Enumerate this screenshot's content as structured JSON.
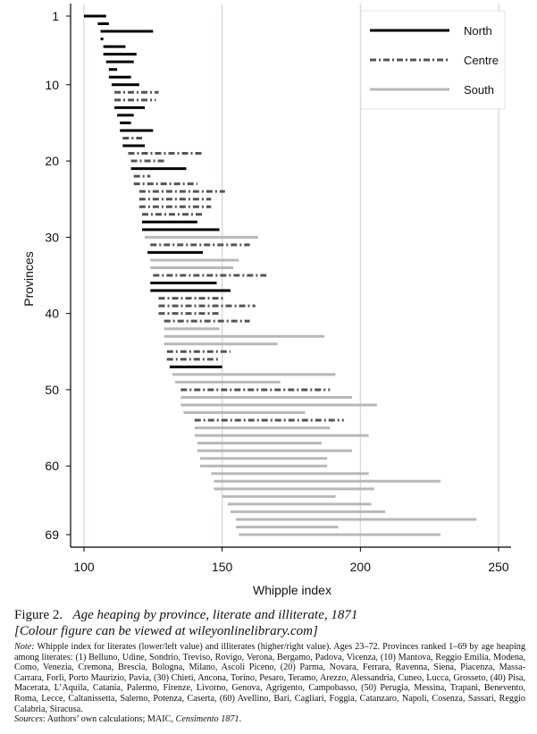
{
  "chart_data": {
    "type": "range-bar",
    "xlabel": "Whipple index",
    "ylabel": "Provinces",
    "xlim": [
      100,
      255
    ],
    "ylim": [
      0,
      70
    ],
    "x_ticks": [
      "100",
      "150",
      "200",
      "250"
    ],
    "y_ticks": [
      "1",
      "10",
      "20",
      "30",
      "40",
      "50",
      "60",
      "69"
    ],
    "grid": "vertical lines at 100, 150, 200, 250",
    "legend": {
      "placement": "top-right",
      "entries": [
        {
          "name": "North",
          "style": "solid",
          "color": "#000000"
        },
        {
          "name": "Centre",
          "style": "dash-dot",
          "color": "#555555"
        },
        {
          "name": "South",
          "style": "solid",
          "color": "#b8b8b8"
        }
      ]
    },
    "provinces": [
      {
        "rank": 1,
        "region": "North",
        "low": 100,
        "high": 108
      },
      {
        "rank": 2,
        "region": "North",
        "low": 105,
        "high": 109
      },
      {
        "rank": 3,
        "region": "North",
        "low": 106,
        "high": 125
      },
      {
        "rank": 4,
        "region": "North",
        "low": 106,
        "high": 107
      },
      {
        "rank": 5,
        "region": "North",
        "low": 107,
        "high": 115
      },
      {
        "rank": 6,
        "region": "North",
        "low": 107,
        "high": 119
      },
      {
        "rank": 7,
        "region": "North",
        "low": 108,
        "high": 118
      },
      {
        "rank": 8,
        "region": "North",
        "low": 109,
        "high": 112
      },
      {
        "rank": 9,
        "region": "North",
        "low": 109,
        "high": 117
      },
      {
        "rank": 10,
        "region": "North",
        "low": 110,
        "high": 120
      },
      {
        "rank": 11,
        "region": "Centre",
        "low": 111,
        "high": 127
      },
      {
        "rank": 12,
        "region": "Centre",
        "low": 111,
        "high": 126
      },
      {
        "rank": 13,
        "region": "North",
        "low": 111,
        "high": 122
      },
      {
        "rank": 14,
        "region": "North",
        "low": 112,
        "high": 118
      },
      {
        "rank": 15,
        "region": "North",
        "low": 113,
        "high": 117
      },
      {
        "rank": 16,
        "region": "North",
        "low": 113,
        "high": 125
      },
      {
        "rank": 17,
        "region": "Centre",
        "low": 114,
        "high": 121
      },
      {
        "rank": 18,
        "region": "North",
        "low": 114,
        "high": 122
      },
      {
        "rank": 19,
        "region": "Centre",
        "low": 116,
        "high": 143
      },
      {
        "rank": 20,
        "region": "Centre",
        "low": 117,
        "high": 129
      },
      {
        "rank": 21,
        "region": "North",
        "low": 117,
        "high": 137
      },
      {
        "rank": 22,
        "region": "Centre",
        "low": 118,
        "high": 124
      },
      {
        "rank": 23,
        "region": "Centre",
        "low": 118,
        "high": 141
      },
      {
        "rank": 24,
        "region": "Centre",
        "low": 120,
        "high": 151
      },
      {
        "rank": 25,
        "region": "Centre",
        "low": 120,
        "high": 146
      },
      {
        "rank": 26,
        "region": "Centre",
        "low": 120,
        "high": 146
      },
      {
        "rank": 27,
        "region": "Centre",
        "low": 121,
        "high": 143
      },
      {
        "rank": 28,
        "region": "North",
        "low": 121,
        "high": 141
      },
      {
        "rank": 29,
        "region": "North",
        "low": 121,
        "high": 149
      },
      {
        "rank": 30,
        "region": "South",
        "low": 122,
        "high": 163
      },
      {
        "rank": 31,
        "region": "Centre",
        "low": 124,
        "high": 160
      },
      {
        "rank": 32,
        "region": "North",
        "low": 123,
        "high": 143
      },
      {
        "rank": 33,
        "region": "South",
        "low": 124,
        "high": 156
      },
      {
        "rank": 34,
        "region": "South",
        "low": 124,
        "high": 154
      },
      {
        "rank": 35,
        "region": "Centre",
        "low": 125,
        "high": 166
      },
      {
        "rank": 36,
        "region": "North",
        "low": 124,
        "high": 148
      },
      {
        "rank": 37,
        "region": "North",
        "low": 124,
        "high": 153
      },
      {
        "rank": 38,
        "region": "Centre",
        "low": 127,
        "high": 151
      },
      {
        "rank": 39,
        "region": "Centre",
        "low": 127,
        "high": 162
      },
      {
        "rank": 40,
        "region": "Centre",
        "low": 127,
        "high": 149
      },
      {
        "rank": 41,
        "region": "Centre",
        "low": 129,
        "high": 160
      },
      {
        "rank": 42,
        "region": "South",
        "low": 129,
        "high": 149
      },
      {
        "rank": 43,
        "region": "South",
        "low": 129,
        "high": 187
      },
      {
        "rank": 44,
        "region": "South",
        "low": 129,
        "high": 170
      },
      {
        "rank": 45,
        "region": "Centre",
        "low": 130,
        "high": 153
      },
      {
        "rank": 46,
        "region": "Centre",
        "low": 130,
        "high": 149
      },
      {
        "rank": 47,
        "region": "North",
        "low": 131,
        "high": 150
      },
      {
        "rank": 48,
        "region": "South",
        "low": 132,
        "high": 191
      },
      {
        "rank": 49,
        "region": "South",
        "low": 133,
        "high": 171
      },
      {
        "rank": 50,
        "region": "Centre",
        "low": 135,
        "high": 189
      },
      {
        "rank": 51,
        "region": "South",
        "low": 135,
        "high": 197
      },
      {
        "rank": 52,
        "region": "South",
        "low": 135,
        "high": 206
      },
      {
        "rank": 53,
        "region": "South",
        "low": 136,
        "high": 180
      },
      {
        "rank": 54,
        "region": "Centre",
        "low": 140,
        "high": 194
      },
      {
        "rank": 55,
        "region": "South",
        "low": 140,
        "high": 189
      },
      {
        "rank": 56,
        "region": "South",
        "low": 140,
        "high": 203
      },
      {
        "rank": 57,
        "region": "South",
        "low": 141,
        "high": 186
      },
      {
        "rank": 58,
        "region": "South",
        "low": 141,
        "high": 197
      },
      {
        "rank": 59,
        "region": "South",
        "low": 142,
        "high": 188
      },
      {
        "rank": 60,
        "region": "South",
        "low": 142,
        "high": 188
      },
      {
        "rank": 61,
        "region": "South",
        "low": 146,
        "high": 203
      },
      {
        "rank": 62,
        "region": "South",
        "low": 147,
        "high": 229
      },
      {
        "rank": 63,
        "region": "South",
        "low": 147,
        "high": 205
      },
      {
        "rank": 64,
        "region": "South",
        "low": 150,
        "high": 191
      },
      {
        "rank": 65,
        "region": "South",
        "low": 152,
        "high": 204
      },
      {
        "rank": 66,
        "region": "South",
        "low": 153,
        "high": 209
      },
      {
        "rank": 67,
        "region": "South",
        "low": 155,
        "high": 242
      },
      {
        "rank": 68,
        "region": "South",
        "low": 155,
        "high": 192
      },
      {
        "rank": 69,
        "region": "South",
        "low": 156,
        "high": 229
      }
    ]
  },
  "caption": {
    "label": "Figure 2.",
    "title": "Age heaping by province, literate and illiterate, 1871",
    "subtitle": "[Colour figure can be viewed at wileyonlinelibrary.com]",
    "note_label": "Note:",
    "note_text": " Whipple index for literates (lower/left value) and illiterates (higher/right value). Ages 23–72. Provinces ranked 1–69 by age heaping among literates: (1) Belluno, Udine, Sondrio, Treviso, Rovigo, Verona, Bergamo, Padova, Vicenza, (10) Mantova, Reggio Emilia, Modena, Como, Venezia, Cremona, Brescia, Bologna, Milano, Ascoli Piceno, (20) Parma, Novara, Ferrara, Ravenna, Siena, Piacenza, Massa-Carrara, Forlì, Porto Maurizio, Pavia, (30) Chieti, Ancona, Torino, Pesaro, Teramo, Arezzo, Alessandria, Cuneo, Lucca, Grosseto, (40) Pisa, Macerata, L’Aquila, Catania, Palermo, Firenze, Livorno, Genova, Agrigento, Campobasso, (50) Perugia, Messina, Trapani, Benevento, Roma, Lecce, Caltanissetta, Salerno, Potenza, Caserta, (60) Avellino, Bari, Cagliari, Foggia, Catanzaro, Napoli, Cosenza, Sassari, Reggio Calabria, Siracusa.",
    "sources_label": "Sources",
    "sources_text": ": Authors’ own calculations; MAIC, ",
    "sources_italic": "Censimento 1871",
    "sources_end": "."
  }
}
